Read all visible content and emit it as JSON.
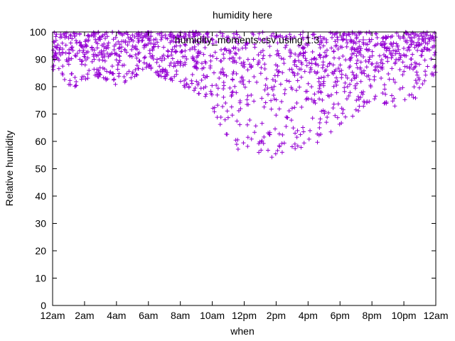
{
  "chart_data": {
    "type": "scatter",
    "title": "humidity here",
    "xlabel": "when",
    "ylabel": "Relative humidity",
    "legend": "humidity_moments.csv using 1:3",
    "legend_position": "top-center",
    "marker": "+",
    "grid": false,
    "colors": {
      "series": "#9400d3",
      "axis": "#000000",
      "background": "#ffffff"
    },
    "xlim": [
      0,
      24
    ],
    "ylim": [
      0,
      100
    ],
    "xticks": [
      "12am",
      "2am",
      "4am",
      "6am",
      "8am",
      "10am",
      "12pm",
      "2pm",
      "4pm",
      "6pm",
      "8pm",
      "10pm",
      "12am"
    ],
    "yticks": [
      0,
      10,
      20,
      30,
      40,
      50,
      60,
      70,
      80,
      90,
      100
    ],
    "series": [
      {
        "x_unit": "hour of day",
        "x": [
          0,
          0.5,
          1,
          1.5,
          2,
          2.5,
          3,
          3.5,
          4,
          4.5,
          5,
          5.5,
          6,
          6.5,
          7,
          7.5,
          8,
          8.5,
          9,
          9.5,
          10,
          10.5,
          11,
          11.5,
          12,
          12.5,
          13,
          13.5,
          14,
          14.5,
          15,
          15.5,
          16,
          16.5,
          17,
          17.5,
          18,
          18.5,
          19,
          19.5,
          20,
          20.5,
          21,
          21.5,
          22,
          22.5,
          23,
          23.5,
          24
        ],
        "y_max": [
          100,
          100,
          100,
          100,
          100,
          100,
          100,
          100,
          100,
          100,
          100,
          100,
          100,
          100,
          100,
          100,
          100,
          100,
          100,
          100,
          100,
          100,
          100,
          100,
          100,
          100,
          100,
          100,
          100,
          100,
          100,
          100,
          100,
          100,
          100,
          100,
          100,
          100,
          100,
          100,
          100,
          100,
          100,
          100,
          100,
          100,
          100,
          100,
          100
        ],
        "y_min": [
          76,
          78,
          80,
          80,
          82,
          84,
          83,
          82,
          80,
          81,
          83,
          84,
          85,
          84,
          83,
          82,
          80,
          79,
          78,
          76,
          72,
          66,
          61,
          57,
          55,
          54,
          54,
          53,
          55,
          56,
          56,
          55,
          57,
          58,
          60,
          63,
          66,
          68,
          70,
          72,
          73,
          73,
          73,
          72,
          74,
          75,
          76,
          77,
          78
        ],
        "y_typical_min": [
          85,
          86,
          86,
          87,
          88,
          88,
          87,
          86,
          85,
          86,
          87,
          87,
          88,
          88,
          87,
          86,
          85,
          84,
          83,
          82,
          80,
          76,
          72,
          68,
          66,
          65,
          64,
          64,
          65,
          66,
          67,
          68,
          69,
          70,
          72,
          74,
          76,
          78,
          80,
          82,
          83,
          84,
          85,
          85,
          86,
          86,
          86,
          86,
          87
        ]
      }
    ]
  }
}
